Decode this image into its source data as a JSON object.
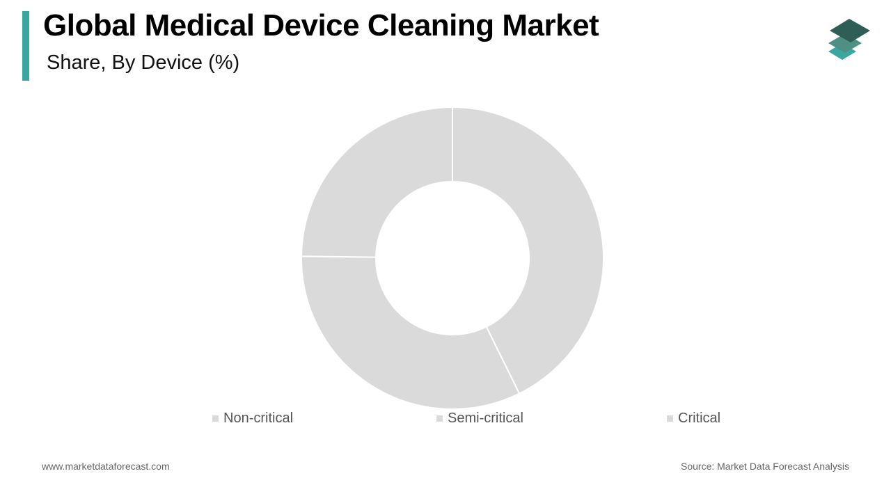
{
  "header": {
    "title": "Global Medical Device Cleaning Market",
    "subtitle": "Share, By Device (%)"
  },
  "colors": {
    "accent": "#3aa6a0",
    "slice": "#dadada",
    "separator": "#ffffff",
    "logo_dark": "#2e5e55",
    "logo_mid": "#4f8f84",
    "logo_light": "#3aa6a0"
  },
  "logo": {
    "icon": "stacked-layers-icon"
  },
  "chart_data": {
    "type": "pie",
    "donut": true,
    "title": "Global Medical Device Cleaning Market",
    "subtitle": "Share, By Device (%)",
    "categories": [
      "Non-critical",
      "Semi-critical",
      "Critical"
    ],
    "values": [
      42.7,
      32.5,
      24.8
    ],
    "value_unit": "%",
    "start_angle_deg": 0,
    "direction": "clockwise",
    "legend": {
      "position": "bottom",
      "items": [
        "Non-critical",
        "Semi-critical",
        "Critical"
      ]
    }
  },
  "footer": {
    "website": "www.marketdataforecast.com",
    "source": "Source: Market Data Forecast Analysis"
  }
}
